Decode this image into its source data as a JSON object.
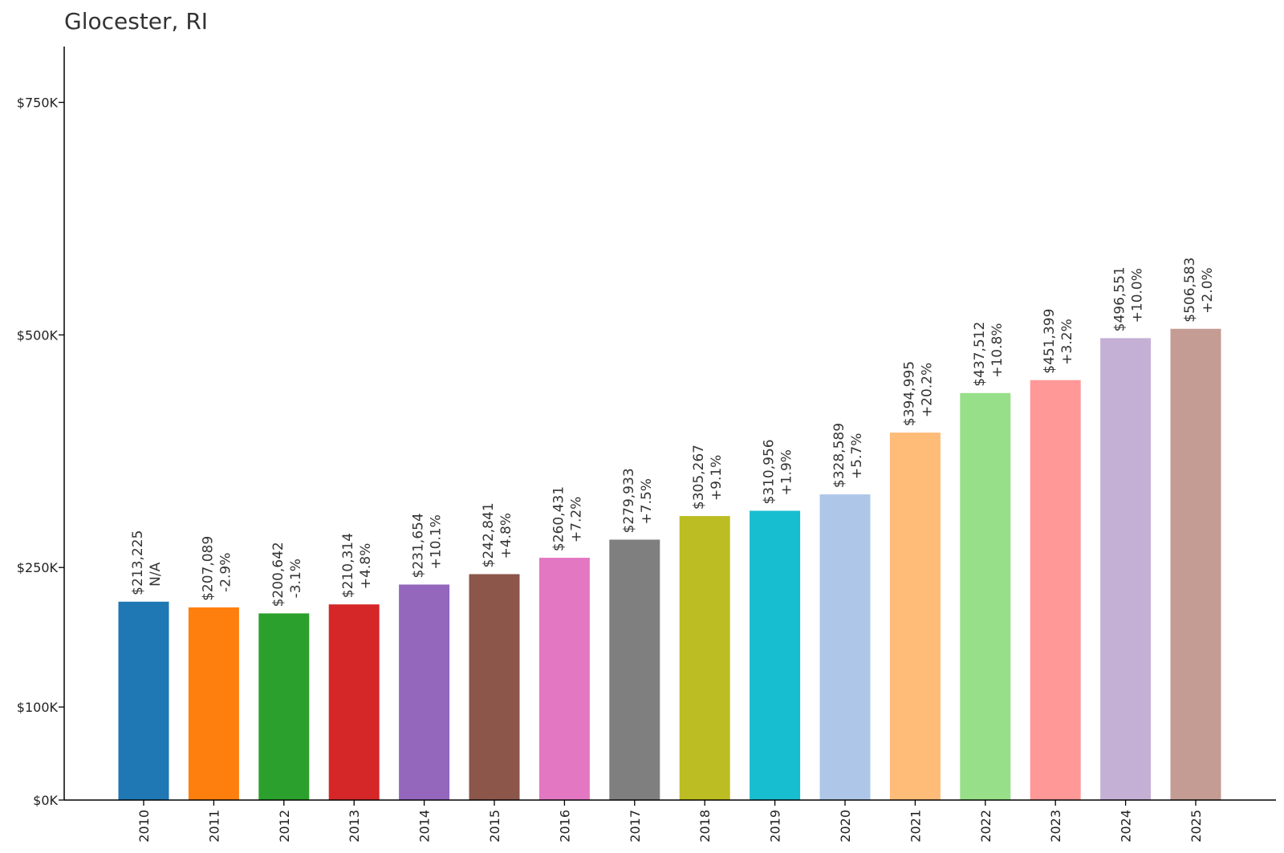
{
  "chart_data": {
    "type": "bar",
    "title": "Glocester, RI",
    "xlabel": "",
    "ylabel": "",
    "categories": [
      "2010",
      "2011",
      "2012",
      "2013",
      "2014",
      "2015",
      "2016",
      "2017",
      "2018",
      "2019",
      "2020",
      "2021",
      "2022",
      "2023",
      "2024",
      "2025"
    ],
    "values": [
      213225,
      207089,
      200642,
      210314,
      231654,
      242841,
      260431,
      279933,
      305267,
      310956,
      328589,
      394995,
      437512,
      451399,
      496551,
      506583
    ],
    "value_labels": [
      "$213,225",
      "$207,089",
      "$200,642",
      "$210,314",
      "$231,654",
      "$242,841",
      "$260,431",
      "$279,933",
      "$305,267",
      "$310,956",
      "$328,589",
      "$394,995",
      "$437,512",
      "$451,399",
      "$496,551",
      "$506,583"
    ],
    "change_labels": [
      "N/A",
      "-2.9%",
      "-3.1%",
      "+4.8%",
      "+10.1%",
      "+4.8%",
      "+7.2%",
      "+7.5%",
      "+9.1%",
      "+1.9%",
      "+5.7%",
      "+20.2%",
      "+10.8%",
      "+3.2%",
      "+10.0%",
      "+2.0%"
    ],
    "colors": [
      "#1f77b4",
      "#ff7f0e",
      "#2ca02c",
      "#d62728",
      "#9467bd",
      "#8c564b",
      "#e377c2",
      "#7f7f7f",
      "#bcbd22",
      "#17becf",
      "#aec7e8",
      "#ffbb78",
      "#98df8a",
      "#ff9896",
      "#c5b0d5",
      "#c49c94"
    ],
    "yticks": [
      0,
      100000,
      250000,
      500000,
      750000
    ],
    "ytick_labels": [
      "$0K",
      "$100K",
      "$250K",
      "$500K",
      "$750K"
    ],
    "ylim": [
      0,
      810000
    ],
    "grid": false,
    "legend": "none"
  }
}
